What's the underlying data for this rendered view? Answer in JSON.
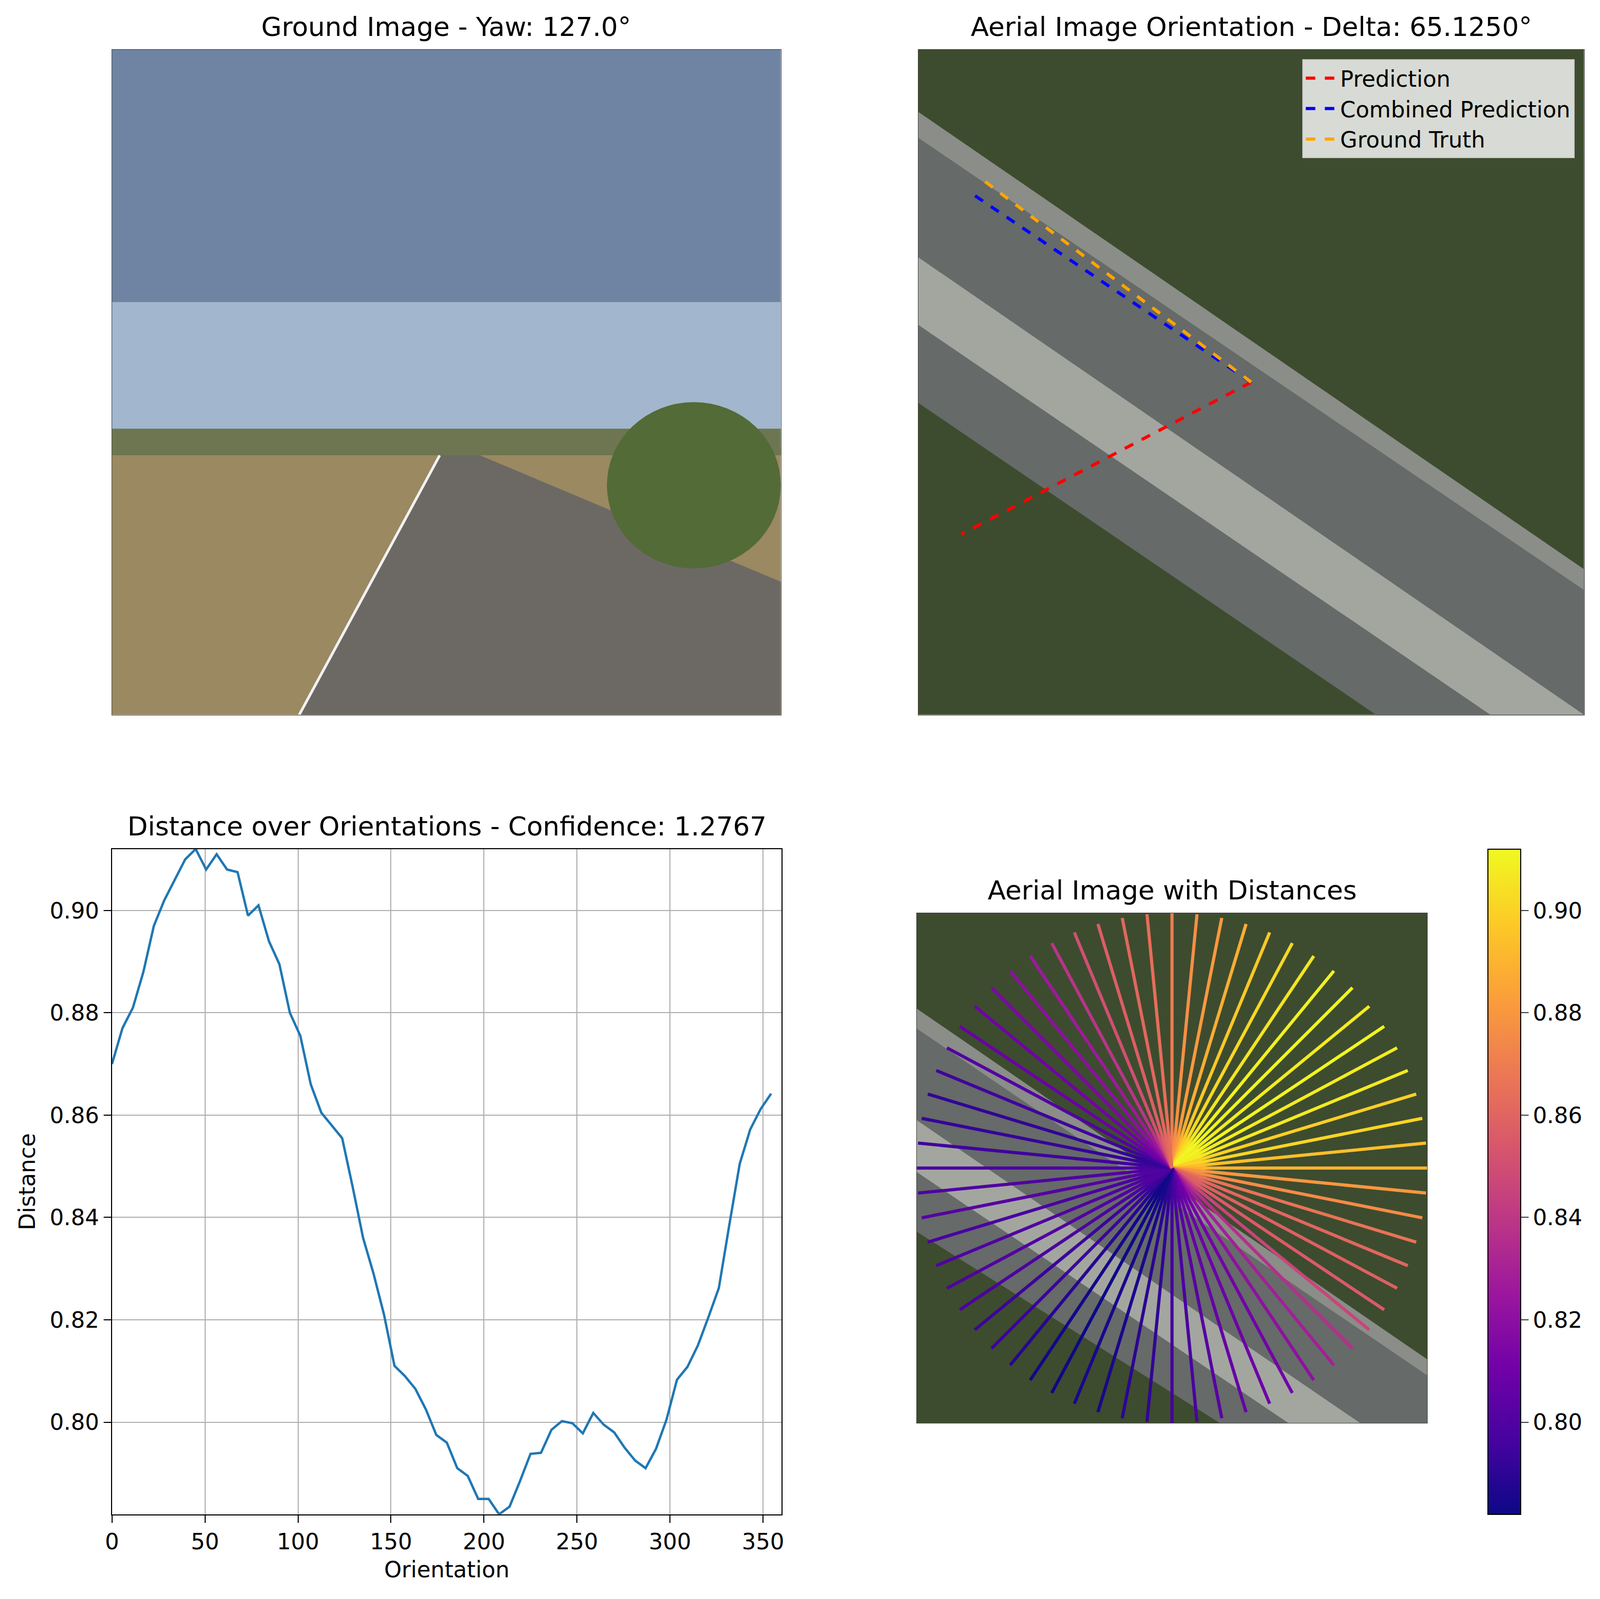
{
  "chart_data": [
    {
      "type": "image",
      "title": "Ground Image - Yaw: 127.0°",
      "tick_labels": false
    },
    {
      "type": "line",
      "title": "Aerial Image Orientation - Delta: 65.1250°",
      "xlim": [
        0,
        128
      ],
      "ylim": [
        128,
        0
      ],
      "tick_labels": false,
      "legend": "upper right",
      "series": [
        {
          "name": "Prediction",
          "color": "#ff0000",
          "line_style": "dashed",
          "x": [
            64,
            8.2
          ],
          "y": [
            64,
            93.3
          ]
        },
        {
          "name": "Combined Prediction",
          "color": "#0000ff",
          "line_style": "dashed",
          "x": [
            64,
            10.4
          ],
          "y": [
            64,
            27.8
          ]
        },
        {
          "name": "Ground Truth",
          "color": "#ffa500",
          "line_style": "dashed",
          "x": [
            64,
            12.7
          ],
          "y": [
            64,
            25.3
          ]
        }
      ]
    },
    {
      "type": "line",
      "title": "Distance over Orientations - Confidence: 1.2767",
      "x_label": "Orientation",
      "y_label": "Distance",
      "color": "#1f77b4",
      "grid": true,
      "x": [
        0,
        5.625,
        11.25,
        16.875,
        22.5,
        28.125,
        33.75,
        39.375,
        45,
        50.625,
        56.25,
        61.875,
        67.5,
        73.125,
        78.75,
        84.375,
        90,
        95.625,
        101.25,
        106.875,
        112.5,
        118.125,
        123.75,
        129.375,
        135,
        140.625,
        146.25,
        151.875,
        157.5,
        163.125,
        168.75,
        174.375,
        180,
        185.625,
        191.25,
        196.875,
        202.5,
        208.125,
        213.75,
        219.375,
        225,
        230.625,
        236.25,
        241.875,
        247.5,
        253.125,
        258.75,
        264.375,
        270,
        275.625,
        281.25,
        286.875,
        292.5,
        298.125,
        303.75,
        309.375,
        315,
        320.625,
        326.25,
        331.875,
        337.5,
        343.125,
        348.75,
        354.375
      ],
      "values": [
        0.87,
        0.877,
        0.881,
        0.888,
        0.897,
        0.902,
        0.906,
        0.91,
        0.912,
        0.908,
        0.911,
        0.908,
        0.9075,
        0.899,
        0.901,
        0.894,
        0.8895,
        0.88,
        0.8755,
        0.866,
        0.8605,
        0.858,
        0.8555,
        0.846,
        0.836,
        0.829,
        0.821,
        0.811,
        0.809,
        0.8065,
        0.8025,
        0.7975,
        0.796,
        0.791,
        0.7895,
        0.785,
        0.785,
        0.782,
        0.7835,
        0.7885,
        0.7938,
        0.794,
        0.7985,
        0.8002,
        0.7998,
        0.7978,
        0.8018,
        0.7995,
        0.798,
        0.795,
        0.7925,
        0.791,
        0.7948,
        0.8005,
        0.8083,
        0.8108,
        0.815,
        0.8205,
        0.8262,
        0.8385,
        0.8505,
        0.8572,
        0.8612,
        0.8642
      ],
      "xlim": [
        0,
        360
      ],
      "ylim": [
        0.782,
        0.912
      ],
      "xticks": [
        0,
        50,
        100,
        150,
        200,
        250,
        300,
        350
      ],
      "yticks": [
        {
          "value": 0.8,
          "label": "0.80"
        },
        0.82,
        0.84,
        0.86,
        0.88,
        {
          "value": 0.9,
          "label": "0.90"
        }
      ]
    },
    {
      "type": "rays",
      "title": "Aerial Image with Distances",
      "color": "plasma",
      "xlim": [
        0,
        128
      ],
      "ylim": [
        128,
        0
      ],
      "tick_labels": false,
      "x": [
        0,
        5.625,
        11.25,
        16.875,
        22.5,
        28.125,
        33.75,
        39.375,
        45,
        50.625,
        56.25,
        61.875,
        67.5,
        73.125,
        78.75,
        84.375,
        90,
        95.625,
        101.25,
        106.875,
        112.5,
        118.125,
        123.75,
        129.375,
        135,
        140.625,
        146.25,
        151.875,
        157.5,
        163.125,
        168.75,
        174.375,
        180,
        185.625,
        191.25,
        196.875,
        202.5,
        208.125,
        213.75,
        219.375,
        225,
        230.625,
        236.25,
        241.875,
        247.5,
        253.125,
        258.75,
        264.375,
        270,
        275.625,
        281.25,
        286.875,
        292.5,
        298.125,
        303.75,
        309.375,
        315,
        320.625,
        326.25,
        331.875,
        337.5,
        343.125,
        348.75,
        354.375
      ],
      "values": [
        0.87,
        0.877,
        0.881,
        0.888,
        0.897,
        0.902,
        0.906,
        0.91,
        0.912,
        0.908,
        0.911,
        0.908,
        0.9075,
        0.899,
        0.901,
        0.894,
        0.8895,
        0.88,
        0.8755,
        0.866,
        0.8605,
        0.858,
        0.8555,
        0.846,
        0.836,
        0.829,
        0.821,
        0.811,
        0.809,
        0.8065,
        0.8025,
        0.7975,
        0.796,
        0.791,
        0.7895,
        0.785,
        0.785,
        0.782,
        0.7835,
        0.7885,
        0.7938,
        0.794,
        0.7985,
        0.8002,
        0.7998,
        0.7978,
        0.8018,
        0.7995,
        0.798,
        0.795,
        0.7925,
        0.791,
        0.7948,
        0.8005,
        0.8083,
        0.8108,
        0.815,
        0.8205,
        0.8262,
        0.8385,
        0.8505,
        0.8572,
        0.8612,
        0.8642
      ],
      "colorbar": {
        "range": [
          0.782,
          0.912
        ],
        "ticks": [
          {
            "value": 0.8,
            "label": "0.80"
          },
          0.82,
          0.84,
          0.86,
          0.88,
          {
            "value": 0.9,
            "label": "0.90"
          }
        ]
      }
    }
  ]
}
